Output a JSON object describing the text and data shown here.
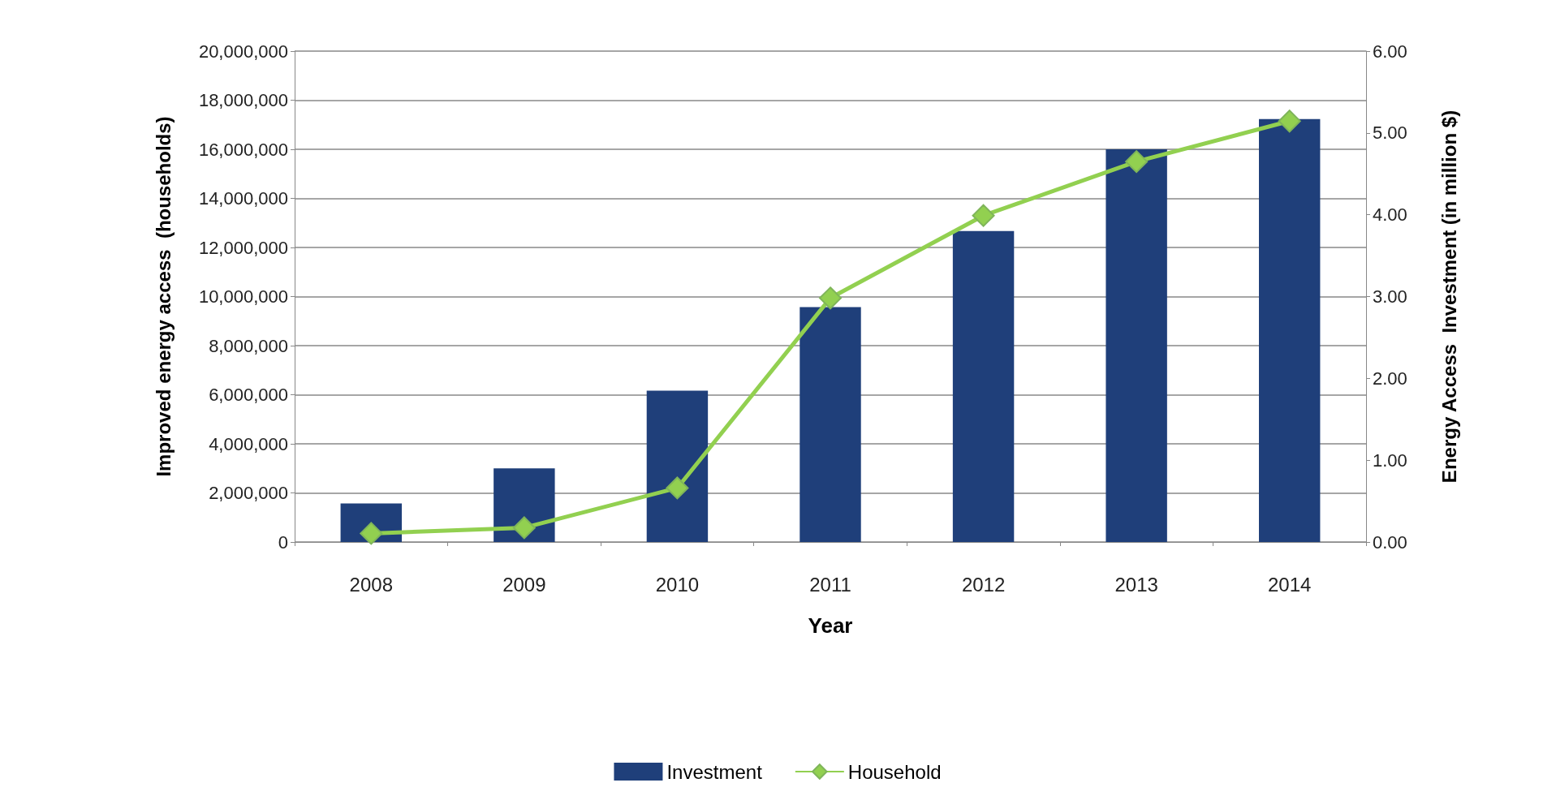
{
  "chart_data": {
    "type": "bar",
    "xlabel": "Year",
    "ylabel": "Improved energy access  (households)",
    "y2label": "Energy Access  Investment (in million $)",
    "categories": [
      "2008",
      "2009",
      "2010",
      "2011",
      "2012",
      "2013",
      "2014"
    ],
    "series": [
      {
        "name": "Investment",
        "axis": "y2",
        "color": "#1f3f7a",
        "values": [
          0.47,
          0.9,
          1.85,
          2.87,
          3.8,
          4.8,
          5.17
        ]
      },
      {
        "name": "Household",
        "type": "line",
        "color": "#92d050",
        "marker": "diamond",
        "values": [
          350000,
          580000,
          2200000,
          9940000,
          13300000,
          15500000,
          17150000
        ]
      }
    ],
    "ylim": [
      0,
      20000000
    ],
    "yticks": [
      {
        "value": 0,
        "label": "0"
      },
      {
        "value": 2000000,
        "label": "2,000,000"
      },
      {
        "value": 4000000,
        "label": "4,000,000"
      },
      {
        "value": 6000000,
        "label": "6,000,000"
      },
      {
        "value": 8000000,
        "label": "8,000,000"
      },
      {
        "value": 10000000,
        "label": "10,000,000"
      },
      {
        "value": 12000000,
        "label": "12,000,000"
      },
      {
        "value": 14000000,
        "label": "14,000,000"
      },
      {
        "value": 16000000,
        "label": "16,000,000"
      },
      {
        "value": 18000000,
        "label": "18,000,000"
      },
      {
        "value": 20000000,
        "label": "20,000,000"
      }
    ],
    "y2lim": [
      0,
      6
    ],
    "y2ticks": [
      {
        "value": 0,
        "label": "0.00"
      },
      {
        "value": 1,
        "label": "1.00"
      },
      {
        "value": 2,
        "label": "2.00"
      },
      {
        "value": 3,
        "label": "3.00"
      },
      {
        "value": 4,
        "label": "4.00"
      },
      {
        "value": 5,
        "label": "5.00"
      },
      {
        "value": 6,
        "label": "6.00"
      }
    ],
    "grid": "y",
    "legend": "bottom"
  }
}
